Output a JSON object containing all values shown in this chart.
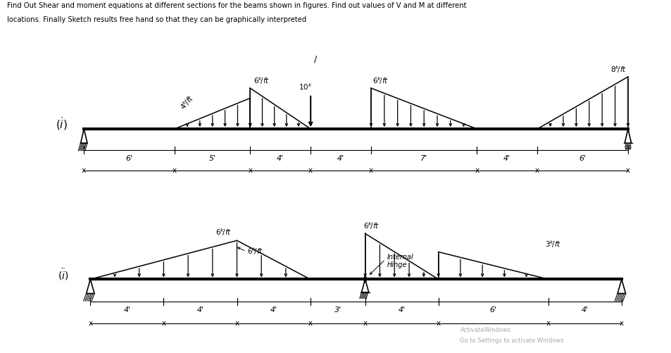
{
  "title_line1": "Find Out Shear and moment equations at different sections for the beams shown in figures. Find out values of V and M at different",
  "title_line2": "locations. Finally Sketch results free hand so that they can be graphically interpreted",
  "bg_color": "#ffffff",
  "beam1_segments": [
    6,
    5,
    4,
    4,
    7,
    4,
    6
  ],
  "beam2_segments": [
    4,
    4,
    4,
    3,
    4,
    6,
    4
  ],
  "annotation_slash": "/",
  "watermark1": "ActivateWindows",
  "watermark2": "Go to Settings to activate Windows"
}
